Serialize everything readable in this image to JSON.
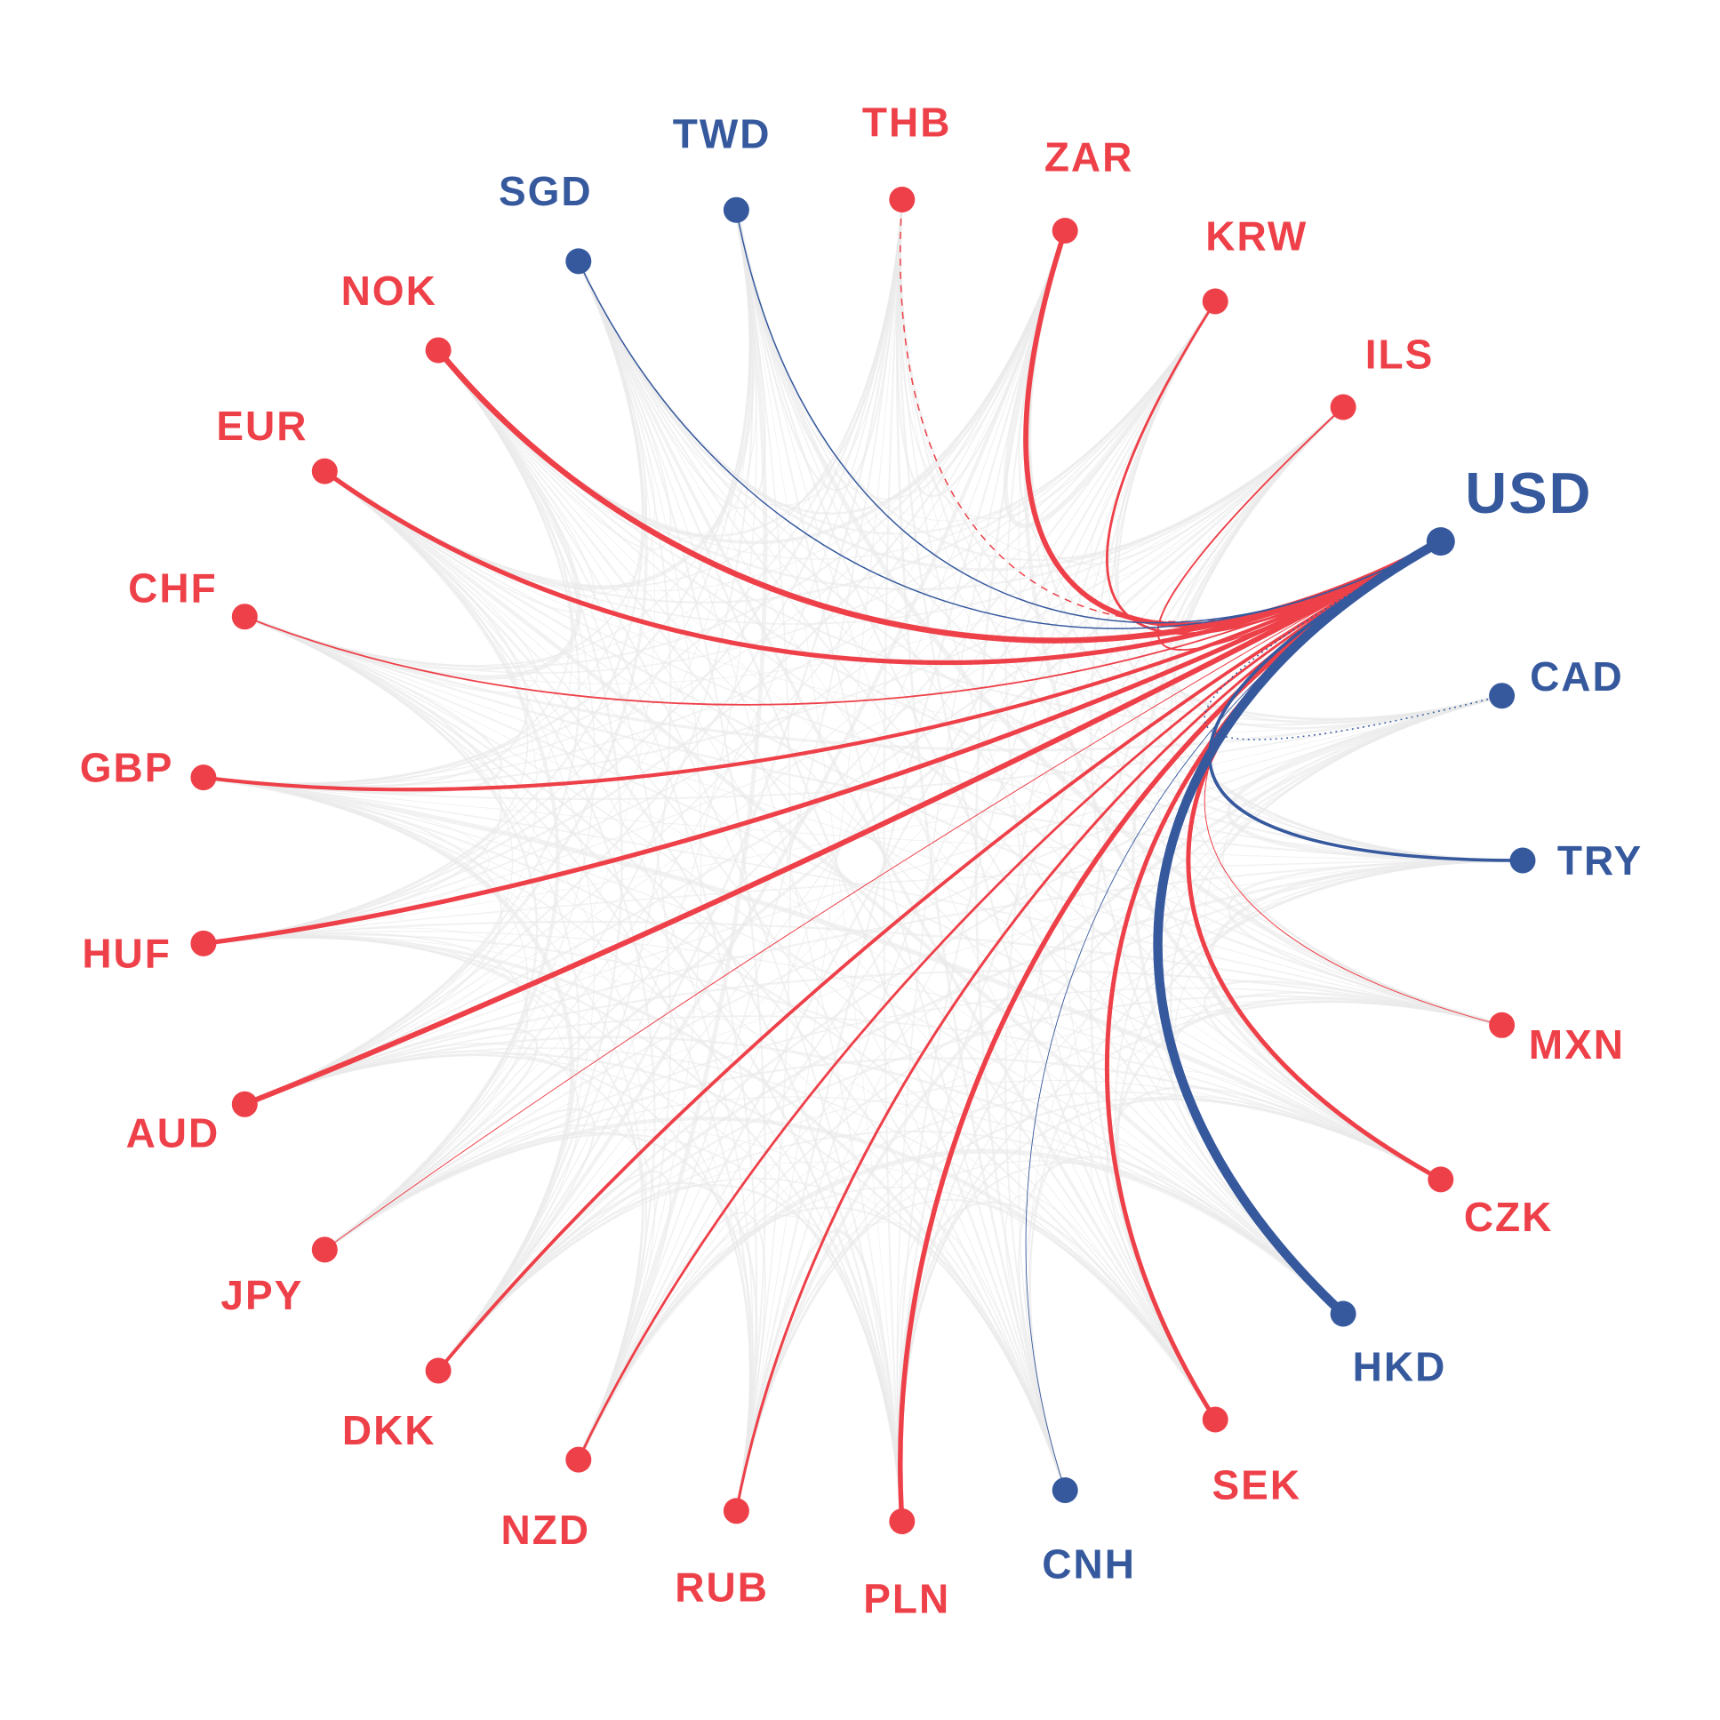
{
  "chart_data": {
    "type": "radial-network",
    "focus": "USD",
    "legend_position": "none",
    "grid": false,
    "style": {
      "red": "#ee4049",
      "blue": "#36599e",
      "gray": "#e9e9e9",
      "background": "#ffffff"
    },
    "layout": {
      "size": 1935,
      "center": 968,
      "ring_radius": 745,
      "label_radius": 832,
      "usd_label_radius": 858,
      "start_angle_deg": -28.8,
      "step_deg": 14.4,
      "tension": 0.58,
      "dot_radius": 14.5,
      "usd_dot_radius": 16,
      "label_font_size": 46,
      "usd_label_font_size": 65
    },
    "nodes": [
      {
        "code": "USD",
        "color": "blue"
      },
      {
        "code": "CAD",
        "color": "blue"
      },
      {
        "code": "TRY",
        "color": "blue"
      },
      {
        "code": "MXN",
        "color": "red"
      },
      {
        "code": "CZK",
        "color": "red"
      },
      {
        "code": "HKD",
        "color": "blue"
      },
      {
        "code": "SEK",
        "color": "red"
      },
      {
        "code": "CNH",
        "color": "blue"
      },
      {
        "code": "PLN",
        "color": "red"
      },
      {
        "code": "RUB",
        "color": "red"
      },
      {
        "code": "NZD",
        "color": "red"
      },
      {
        "code": "DKK",
        "color": "red"
      },
      {
        "code": "JPY",
        "color": "red"
      },
      {
        "code": "AUD",
        "color": "red"
      },
      {
        "code": "HUF",
        "color": "red"
      },
      {
        "code": "GBP",
        "color": "red"
      },
      {
        "code": "CHF",
        "color": "red"
      },
      {
        "code": "EUR",
        "color": "red"
      },
      {
        "code": "NOK",
        "color": "red"
      },
      {
        "code": "SGD",
        "color": "blue"
      },
      {
        "code": "TWD",
        "color": "blue"
      },
      {
        "code": "THB",
        "color": "red"
      },
      {
        "code": "ZAR",
        "color": "red"
      },
      {
        "code": "KRW",
        "color": "red"
      },
      {
        "code": "ILS",
        "color": "red"
      }
    ],
    "usd_edges": [
      {
        "target": "CAD",
        "color": "blue",
        "width": 1.6,
        "line_style": "dotted"
      },
      {
        "target": "TRY",
        "color": "blue",
        "width": 3.6,
        "line_style": "solid"
      },
      {
        "target": "MXN",
        "color": "red",
        "width": 1.0,
        "line_style": "solid"
      },
      {
        "target": "CZK",
        "color": "red",
        "width": 5.0,
        "line_style": "solid"
      },
      {
        "target": "HKD",
        "color": "blue",
        "width": 10.5,
        "line_style": "solid"
      },
      {
        "target": "SEK",
        "color": "red",
        "width": 5.0,
        "line_style": "solid"
      },
      {
        "target": "CNH",
        "color": "blue",
        "width": 0.9,
        "line_style": "solid"
      },
      {
        "target": "PLN",
        "color": "red",
        "width": 5.5,
        "line_style": "solid"
      },
      {
        "target": "RUB",
        "color": "red",
        "width": 3.0,
        "line_style": "solid"
      },
      {
        "target": "NZD",
        "color": "red",
        "width": 2.8,
        "line_style": "solid"
      },
      {
        "target": "DKK",
        "color": "red",
        "width": 3.8,
        "line_style": "solid"
      },
      {
        "target": "JPY",
        "color": "red",
        "width": 1.0,
        "line_style": "solid"
      },
      {
        "target": "AUD",
        "color": "red",
        "width": 6.0,
        "line_style": "solid"
      },
      {
        "target": "HUF",
        "color": "red",
        "width": 5.2,
        "line_style": "solid"
      },
      {
        "target": "GBP",
        "color": "red",
        "width": 4.2,
        "line_style": "solid"
      },
      {
        "target": "CHF",
        "color": "red",
        "width": 1.8,
        "line_style": "solid"
      },
      {
        "target": "EUR",
        "color": "red",
        "width": 5.2,
        "line_style": "solid"
      },
      {
        "target": "NOK",
        "color": "red",
        "width": 6.5,
        "line_style": "solid"
      },
      {
        "target": "SGD",
        "color": "blue",
        "width": 1.5,
        "line_style": "solid"
      },
      {
        "target": "TWD",
        "color": "blue",
        "width": 1.5,
        "line_style": "solid"
      },
      {
        "target": "THB",
        "color": "red",
        "width": 1.5,
        "line_style": "dashed"
      },
      {
        "target": "ZAR",
        "color": "red",
        "width": 5.8,
        "line_style": "solid"
      },
      {
        "target": "KRW",
        "color": "red",
        "width": 2.8,
        "line_style": "solid"
      },
      {
        "target": "ILS",
        "color": "red",
        "width": 1.9,
        "line_style": "solid"
      }
    ]
  }
}
